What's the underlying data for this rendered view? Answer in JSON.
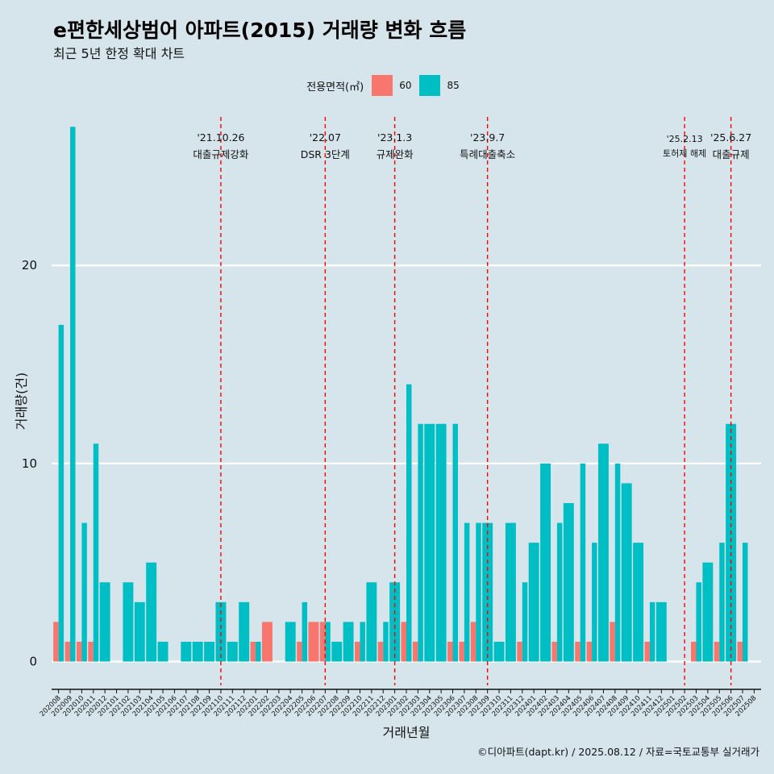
{
  "chart_data": {
    "type": "bar",
    "title": "e편한세상범어 아파트(2015) 거래량 변화 흐름",
    "subtitle": "최근 5년 한정 확대 차트",
    "xlabel": "거래년월",
    "ylabel": "거래량(건)",
    "caption": "©디아파트(dapt.kr) / 2025.08.12 / 자료=국토교통부 실거래가",
    "legend": {
      "title": "전용면적(㎡)",
      "entries": [
        {
          "label": "60",
          "color": "#F8766D"
        },
        {
          "label": "85",
          "color": "#00BFC4"
        }
      ],
      "placement": "top"
    },
    "ylim": [
      -1.2,
      27.5
    ],
    "yticks": [
      0,
      10,
      20
    ],
    "grid": true,
    "categories": [
      "202008",
      "202009",
      "202010",
      "202011",
      "202012",
      "202101",
      "202102",
      "202103",
      "202104",
      "202105",
      "202106",
      "202107",
      "202108",
      "202109",
      "202110",
      "202111",
      "202112",
      "202201",
      "202202",
      "202203",
      "202204",
      "202205",
      "202206",
      "202207",
      "202208",
      "202209",
      "202210",
      "202211",
      "202212",
      "202301",
      "202302",
      "202303",
      "202304",
      "202305",
      "202306",
      "202307",
      "202308",
      "202309",
      "202310",
      "202311",
      "202312",
      "202401",
      "202402",
      "202403",
      "202404",
      "202405",
      "202406",
      "202407",
      "202408",
      "202409",
      "202410",
      "202411",
      "202412",
      "202501",
      "202502",
      "202503",
      "202504",
      "202505",
      "202506",
      "202507",
      "202508"
    ],
    "series": [
      {
        "name": "60",
        "color": "#F8766D",
        "values": [
          2,
          1,
          1,
          1,
          0,
          0,
          0,
          0,
          0,
          0,
          0,
          0,
          0,
          0,
          0,
          0,
          0,
          1,
          2,
          0,
          0,
          1,
          2,
          2,
          0,
          0,
          1,
          0,
          1,
          0,
          2,
          1,
          0,
          0,
          1,
          1,
          2,
          0,
          0,
          0,
          1,
          0,
          0,
          1,
          0,
          1,
          1,
          0,
          2,
          0,
          0,
          1,
          0,
          0,
          0,
          1,
          0,
          1,
          0,
          1,
          0
        ]
      },
      {
        "name": "85",
        "color": "#00BFC4",
        "values": [
          17,
          27,
          7,
          11,
          4,
          0,
          4,
          3,
          5,
          1,
          0,
          1,
          1,
          1,
          3,
          1,
          3,
          1,
          0,
          0,
          2,
          3,
          0,
          2,
          1,
          2,
          2,
          4,
          2,
          4,
          14,
          12,
          12,
          12,
          12,
          7,
          7,
          7,
          1,
          7,
          4,
          6,
          10,
          7,
          8,
          10,
          6,
          11,
          10,
          9,
          6,
          3,
          3,
          0,
          0,
          4,
          5,
          6,
          12,
          6,
          0
        ]
      }
    ],
    "events": [
      {
        "date": "'21.10.26",
        "label": "대출규제강화",
        "category": "202110"
      },
      {
        "date": "'22.07",
        "label": "DSR 3단계",
        "category": "202207"
      },
      {
        "date": "'23.1.3",
        "label": "규제완화",
        "category": "202301"
      },
      {
        "date": "'23.9.7",
        "label": "특례대출축소",
        "category": "202309"
      },
      {
        "date": "'25.2.13",
        "label": "토허제 해제",
        "category": "202502"
      },
      {
        "date": "'25.6.27",
        "label": "대출규제",
        "category": "202506"
      }
    ]
  }
}
